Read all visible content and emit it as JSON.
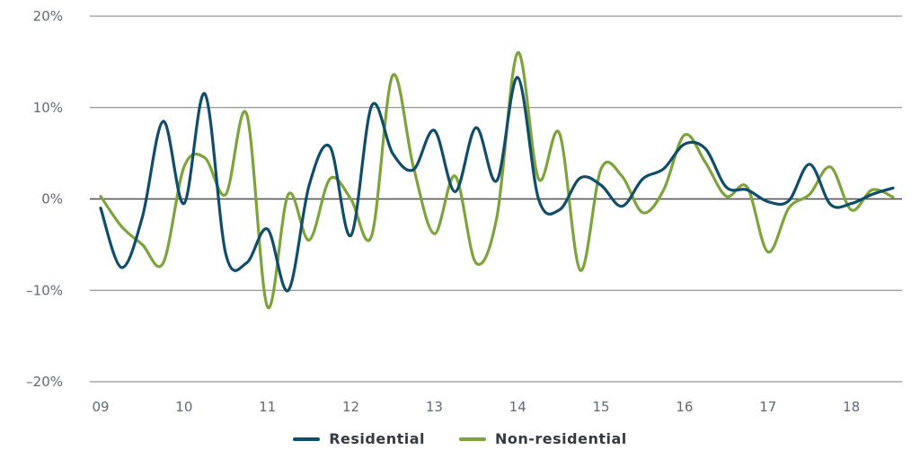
{
  "chart_data": {
    "type": "line",
    "title": "",
    "xlabel": "",
    "ylabel": "",
    "x_ticks": [
      "09",
      "10",
      "11",
      "12",
      "13",
      "14",
      "15",
      "16",
      "17",
      "18"
    ],
    "x_tick_values": [
      9,
      10,
      11,
      12,
      13,
      14,
      15,
      16,
      17,
      18
    ],
    "xlim": [
      9,
      18.5
    ],
    "y_ticks": [
      "–20%",
      "–10%",
      "0%",
      "10%",
      "20%"
    ],
    "y_tick_values": [
      -20,
      -10,
      0,
      10,
      20
    ],
    "ylim": [
      -20,
      20
    ],
    "grid": "horizontal",
    "legend_position": "bottom",
    "series": [
      {
        "name": "Residential",
        "color": "#0f4d6b",
        "x": [
          9.0,
          9.25,
          9.5,
          9.75,
          10.0,
          10.25,
          10.5,
          10.75,
          11.0,
          11.25,
          11.5,
          11.75,
          12.0,
          12.25,
          12.5,
          12.75,
          13.0,
          13.25,
          13.5,
          13.75,
          14.0,
          14.25,
          14.5,
          14.75,
          15.0,
          15.25,
          15.5,
          15.75,
          16.0,
          16.25,
          16.5,
          16.75,
          17.0,
          17.25,
          17.5,
          17.75,
          18.0,
          18.25,
          18.5
        ],
        "values": [
          -1.0,
          -7.5,
          -2.0,
          8.5,
          -0.5,
          11.5,
          -6.0,
          -7.0,
          -3.3,
          -10.0,
          1.5,
          5.7,
          -4.0,
          10.2,
          5.0,
          3.2,
          7.5,
          0.8,
          7.8,
          2.0,
          13.3,
          0.0,
          -1.2,
          2.3,
          1.5,
          -0.8,
          2.2,
          3.3,
          6.0,
          5.5,
          1.3,
          1.0,
          -0.3,
          -0.2,
          3.8,
          -0.6,
          -0.5,
          0.5,
          1.2
        ]
      },
      {
        "name": "Non-residential",
        "color": "#7da43b",
        "x": [
          9.0,
          9.25,
          9.5,
          9.75,
          10.0,
          10.25,
          10.5,
          10.75,
          11.0,
          11.25,
          11.5,
          11.75,
          12.0,
          12.25,
          12.5,
          12.75,
          13.0,
          13.25,
          13.5,
          13.75,
          14.0,
          14.25,
          14.5,
          14.75,
          15.0,
          15.25,
          15.5,
          15.75,
          16.0,
          16.25,
          16.5,
          16.75,
          17.0,
          17.25,
          17.5,
          17.75,
          18.0,
          18.25,
          18.5
        ],
        "values": [
          0.3,
          -3.0,
          -5.0,
          -7.0,
          3.5,
          4.5,
          0.5,
          9.3,
          -11.8,
          0.5,
          -4.5,
          2.2,
          0.0,
          -4.0,
          13.5,
          3.5,
          -3.8,
          2.5,
          -7.0,
          -2.0,
          16.0,
          2.2,
          7.2,
          -7.8,
          3.3,
          2.5,
          -1.5,
          1.0,
          7.0,
          4.0,
          0.3,
          1.3,
          -5.8,
          -1.0,
          0.5,
          3.5,
          -1.2,
          1.0,
          0.2
        ]
      }
    ]
  }
}
